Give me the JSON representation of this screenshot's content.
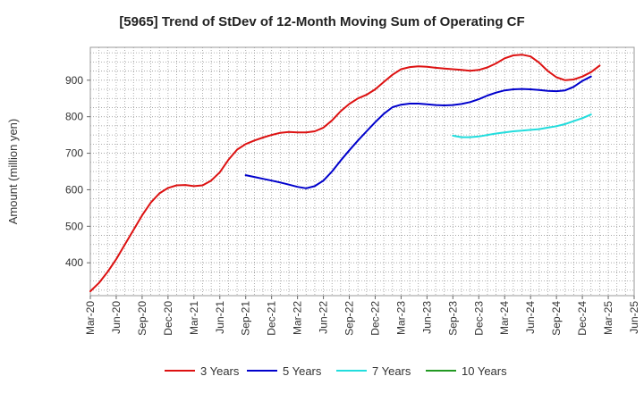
{
  "chart_data": {
    "type": "line",
    "title": "[5965]  Trend of StDev of 12-Month Moving Sum of Operating CF",
    "xlabel": "",
    "ylabel": "Amount (million yen)",
    "ylim": [
      310,
      990
    ],
    "yticks": [
      400,
      500,
      600,
      700,
      800,
      900
    ],
    "x_tick_labels": [
      "Mar-20",
      "Jun-20",
      "Sep-20",
      "Dec-20",
      "Mar-21",
      "Jun-21",
      "Sep-21",
      "Dec-21",
      "Mar-22",
      "Jun-22",
      "Sep-22",
      "Dec-22",
      "Mar-23",
      "Jun-23",
      "Sep-23",
      "Dec-23",
      "Mar-24",
      "Jun-24",
      "Sep-24",
      "Dec-24",
      "Mar-25",
      "Jun-25"
    ],
    "grid": true,
    "legend_position": "bottom",
    "series": [
      {
        "name": "3 Years",
        "color": "#dd1111",
        "start_month_index": 0,
        "values": [
          322,
          345,
          375,
          410,
          450,
          490,
          530,
          565,
          590,
          605,
          612,
          613,
          610,
          612,
          625,
          648,
          682,
          710,
          725,
          735,
          743,
          750,
          756,
          758,
          757,
          757,
          760,
          770,
          790,
          815,
          835,
          850,
          860,
          875,
          895,
          915,
          930,
          936,
          938,
          937,
          934,
          932,
          930,
          928,
          926,
          928,
          935,
          946,
          960,
          968,
          970,
          965,
          948,
          925,
          908,
          900,
          902,
          910,
          922,
          940
        ]
      },
      {
        "name": "5 Years",
        "color": "#0000cc",
        "start_month_index": 18,
        "values": [
          640,
          635,
          630,
          625,
          620,
          614,
          608,
          604,
          610,
          625,
          650,
          680,
          708,
          735,
          760,
          785,
          808,
          826,
          833,
          836,
          836,
          834,
          832,
          831,
          832,
          835,
          840,
          848,
          858,
          866,
          872,
          875,
          876,
          875,
          873,
          871,
          870,
          872,
          882,
          898,
          910
        ]
      },
      {
        "name": "7 Years",
        "color": "#22dddd",
        "start_month_index": 42,
        "values": [
          748,
          744,
          744,
          746,
          750,
          754,
          757,
          760,
          762,
          764,
          766,
          770,
          774,
          780,
          788,
          796,
          806
        ]
      },
      {
        "name": "10 Years",
        "color": "#229922",
        "start_month_index": 0,
        "values": []
      }
    ]
  }
}
